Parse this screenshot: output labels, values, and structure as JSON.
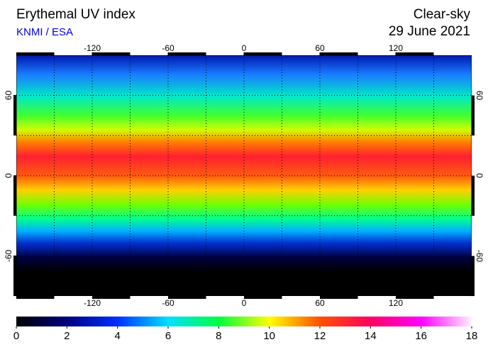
{
  "header": {
    "title": "Erythemal UV index",
    "source": "KNMI / ESA",
    "condition": "Clear-sky",
    "date": "29 June 2021"
  },
  "map": {
    "lon_lim": [
      -180,
      180
    ],
    "lat_lim": [
      -90,
      90
    ],
    "lon_ticks": [
      -120,
      -60,
      0,
      60,
      120
    ],
    "lat_ticks": [
      60,
      0,
      -60
    ],
    "grid_spacing": 30
  },
  "colorbar": {
    "lim": [
      0,
      18
    ],
    "ticks": [
      0,
      2,
      4,
      6,
      8,
      10,
      12,
      14,
      16,
      18
    ],
    "colors": [
      "#000000",
      "#000080",
      "#0030ff",
      "#00e0ff",
      "#00ff40",
      "#ffff00",
      "#ff5000",
      "#ff0060",
      "#ff00ff",
      "#fff0ff"
    ]
  }
}
